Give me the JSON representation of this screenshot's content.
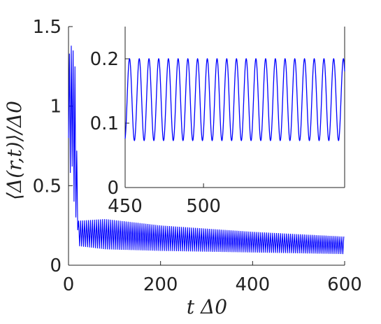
{
  "chart_data": [
    {
      "type": "line",
      "role": "main",
      "xlabel": "t Δ0",
      "ylabel": "⟨Δ(r,t)⟩/Δ0",
      "xlim": [
        0,
        600
      ],
      "ylim": [
        0,
        1.5
      ],
      "xticks": [
        0,
        200,
        400,
        600
      ],
      "xtick_labels": [
        "0",
        "200",
        "400",
        "600"
      ],
      "yticks": [
        0,
        0.5,
        1,
        1.5
      ],
      "ytick_labels": [
        "0",
        "0.5",
        "1",
        "1.5"
      ],
      "color": "#0000ff",
      "series": [
        {
          "description": "transient spikes then damped oscillation",
          "spikes": [
            {
              "x": 0,
              "y": 0.8
            },
            {
              "x": 2,
              "y": 1.33
            },
            {
              "x": 4,
              "y": 0.58
            },
            {
              "x": 6,
              "y": 1.38
            },
            {
              "x": 8,
              "y": 0.62
            },
            {
              "x": 10,
              "y": 1.35
            },
            {
              "x": 12,
              "y": 0.4
            },
            {
              "x": 14,
              "y": 1.25
            },
            {
              "x": 16,
              "y": 0.3
            },
            {
              "x": 18,
              "y": 0.72
            },
            {
              "x": 20,
              "y": 0.22
            },
            {
              "x": 22,
              "y": 0.28
            }
          ],
          "envelope": [
            {
              "x": 22,
              "min": 0.12,
              "max": 0.28
            },
            {
              "x": 80,
              "min": 0.1,
              "max": 0.29
            },
            {
              "x": 200,
              "min": 0.09,
              "max": 0.25
            },
            {
              "x": 400,
              "min": 0.08,
              "max": 0.21
            },
            {
              "x": 600,
              "min": 0.07,
              "max": 0.18
            }
          ],
          "period": 4.3
        }
      ]
    },
    {
      "type": "line",
      "role": "inset",
      "xlim": [
        450,
        590
      ],
      "ylim": [
        0,
        0.25
      ],
      "xticks": [
        450,
        500
      ],
      "xtick_labels": [
        "450",
        "500"
      ],
      "yticks": [
        0,
        0.1,
        0.2
      ],
      "ytick_labels": [
        "0",
        "0.1",
        "0.2"
      ],
      "color": "#0000ff",
      "series": [
        {
          "y_min": 0.073,
          "y_max": 0.2,
          "period": 6.2,
          "x_start": 450,
          "x_end": 590
        }
      ]
    }
  ]
}
